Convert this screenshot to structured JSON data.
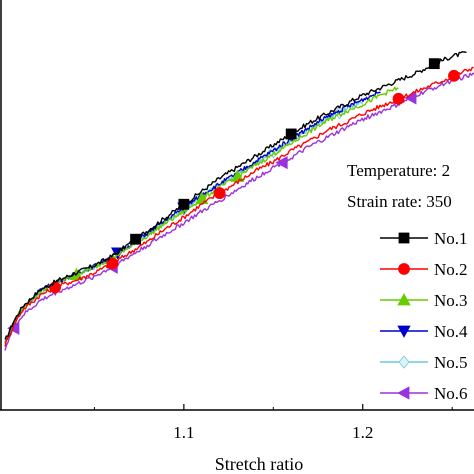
{
  "chart_data": {
    "type": "line",
    "title": "",
    "xlabel": "Stretch ratio",
    "ylabel": "",
    "xlim": [
      1.0,
      1.265
    ],
    "ylim": [
      0,
      1
    ],
    "x_ticks": [
      {
        "value": 1.1,
        "label": "1.1"
      },
      {
        "value": 1.2,
        "label": "1.2"
      }
    ],
    "annotations": [
      "Temperature: 2",
      "Strain rate: 350"
    ],
    "legend": {
      "placement": "right",
      "entries": [
        {
          "label": "No.1",
          "color": "#000000",
          "marker": "square"
        },
        {
          "label": "No.2",
          "color": "#ff0000",
          "marker": "circle"
        },
        {
          "label": "No.3",
          "color": "#66cc00",
          "marker": "triangle-up"
        },
        {
          "label": "No.4",
          "color": "#0000cc",
          "marker": "triangle-down"
        },
        {
          "label": "No.5",
          "color": "#66ccdd",
          "marker": "diamond"
        },
        {
          "label": "No.6",
          "color": "#9933dd",
          "marker": "triangle-left"
        }
      ]
    },
    "series": [
      {
        "name": "No.1",
        "color": "#000000",
        "marker": "square",
        "x": [
          1.0,
          1.005,
          1.01,
          1.02,
          1.03,
          1.04,
          1.05,
          1.06,
          1.07,
          1.08,
          1.09,
          1.1,
          1.11,
          1.12,
          1.13,
          1.14,
          1.15,
          1.16,
          1.17,
          1.18,
          1.19,
          1.2,
          1.21,
          1.22,
          1.23,
          1.24,
          1.25,
          1.258
        ],
        "y": [
          0.105,
          0.16,
          0.2,
          0.245,
          0.27,
          0.29,
          0.31,
          0.335,
          0.37,
          0.405,
          0.44,
          0.475,
          0.51,
          0.545,
          0.575,
          0.605,
          0.635,
          0.665,
          0.695,
          0.72,
          0.745,
          0.77,
          0.79,
          0.81,
          0.83,
          0.855,
          0.875,
          0.885
        ],
        "marker_x": [
          1.073,
          1.1,
          1.16,
          1.24
        ]
      },
      {
        "name": "No.2",
        "color": "#ff0000",
        "marker": "circle",
        "x": [
          1.0,
          1.005,
          1.01,
          1.02,
          1.03,
          1.04,
          1.05,
          1.06,
          1.07,
          1.08,
          1.09,
          1.1,
          1.11,
          1.12,
          1.13,
          1.14,
          1.15,
          1.16,
          1.17,
          1.18,
          1.19,
          1.2,
          1.21,
          1.22,
          1.23,
          1.24,
          1.25,
          1.262
        ],
        "y": [
          0.095,
          0.15,
          0.19,
          0.23,
          0.255,
          0.27,
          0.29,
          0.315,
          0.345,
          0.375,
          0.41,
          0.44,
          0.475,
          0.505,
          0.535,
          0.565,
          0.59,
          0.62,
          0.645,
          0.675,
          0.695,
          0.72,
          0.74,
          0.76,
          0.78,
          0.8,
          0.82,
          0.845
        ],
        "marker_x": [
          1.028,
          1.06,
          1.12,
          1.22,
          1.251
        ]
      },
      {
        "name": "No.3",
        "color": "#66cc00",
        "marker": "triangle-up",
        "x": [
          1.0,
          1.005,
          1.01,
          1.02,
          1.03,
          1.04,
          1.05,
          1.06,
          1.07,
          1.08,
          1.09,
          1.1,
          1.11,
          1.12,
          1.13,
          1.14,
          1.15,
          1.16,
          1.17,
          1.18,
          1.19,
          1.2,
          1.21,
          1.22
        ],
        "y": [
          0.1,
          0.155,
          0.195,
          0.24,
          0.265,
          0.285,
          0.305,
          0.33,
          0.36,
          0.39,
          0.425,
          0.455,
          0.49,
          0.52,
          0.55,
          0.58,
          0.61,
          0.64,
          0.67,
          0.7,
          0.725,
          0.745,
          0.77,
          0.79
        ],
        "marker_x": [
          1.04,
          1.11,
          1.13
        ]
      },
      {
        "name": "No.4",
        "color": "#0000cc",
        "marker": "triangle-down",
        "x": [
          1.0,
          1.005,
          1.01,
          1.02,
          1.03,
          1.04,
          1.05,
          1.06,
          1.07,
          1.08,
          1.09,
          1.1,
          1.11,
          1.12,
          1.13,
          1.14,
          1.15,
          1.16,
          1.17,
          1.18,
          1.19,
          1.2,
          1.21
        ],
        "y": [
          0.1,
          0.158,
          0.198,
          0.242,
          0.268,
          0.288,
          0.308,
          0.334,
          0.366,
          0.398,
          0.432,
          0.465,
          0.5,
          0.53,
          0.56,
          0.59,
          0.62,
          0.652,
          0.682,
          0.71,
          0.735,
          0.758,
          0.78
        ],
        "marker_x": [
          1.063,
          1.1
        ]
      },
      {
        "name": "No.5",
        "color": "#66ccdd",
        "marker": "diamond",
        "x": [
          1.0,
          1.005,
          1.01,
          1.02,
          1.03,
          1.04,
          1.05,
          1.06,
          1.07,
          1.08,
          1.09,
          1.1,
          1.11,
          1.12,
          1.13,
          1.14,
          1.15,
          1.16,
          1.17,
          1.18,
          1.19,
          1.2
        ],
        "y": [
          0.1,
          0.155,
          0.195,
          0.238,
          0.265,
          0.285,
          0.305,
          0.33,
          0.362,
          0.395,
          0.43,
          0.462,
          0.495,
          0.527,
          0.557,
          0.587,
          0.617,
          0.647,
          0.677,
          0.705,
          0.73,
          0.752
        ],
        "marker_x": [
          1.1,
          1.15,
          1.187
        ]
      },
      {
        "name": "No.6",
        "color": "#9933dd",
        "marker": "triangle-left",
        "x": [
          1.0,
          1.005,
          1.01,
          1.02,
          1.03,
          1.04,
          1.05,
          1.06,
          1.07,
          1.08,
          1.09,
          1.1,
          1.11,
          1.12,
          1.13,
          1.14,
          1.15,
          1.16,
          1.17,
          1.18,
          1.19,
          1.2,
          1.21,
          1.22,
          1.23,
          1.24,
          1.25,
          1.265
        ],
        "y": [
          0.085,
          0.14,
          0.175,
          0.215,
          0.24,
          0.258,
          0.28,
          0.305,
          0.335,
          0.365,
          0.395,
          0.425,
          0.455,
          0.485,
          0.515,
          0.545,
          0.575,
          0.6,
          0.63,
          0.655,
          0.68,
          0.705,
          0.725,
          0.745,
          0.77,
          0.79,
          0.81,
          0.83
        ],
        "marker_x": [
          1.005,
          1.06,
          1.155,
          1.227
        ]
      }
    ]
  }
}
